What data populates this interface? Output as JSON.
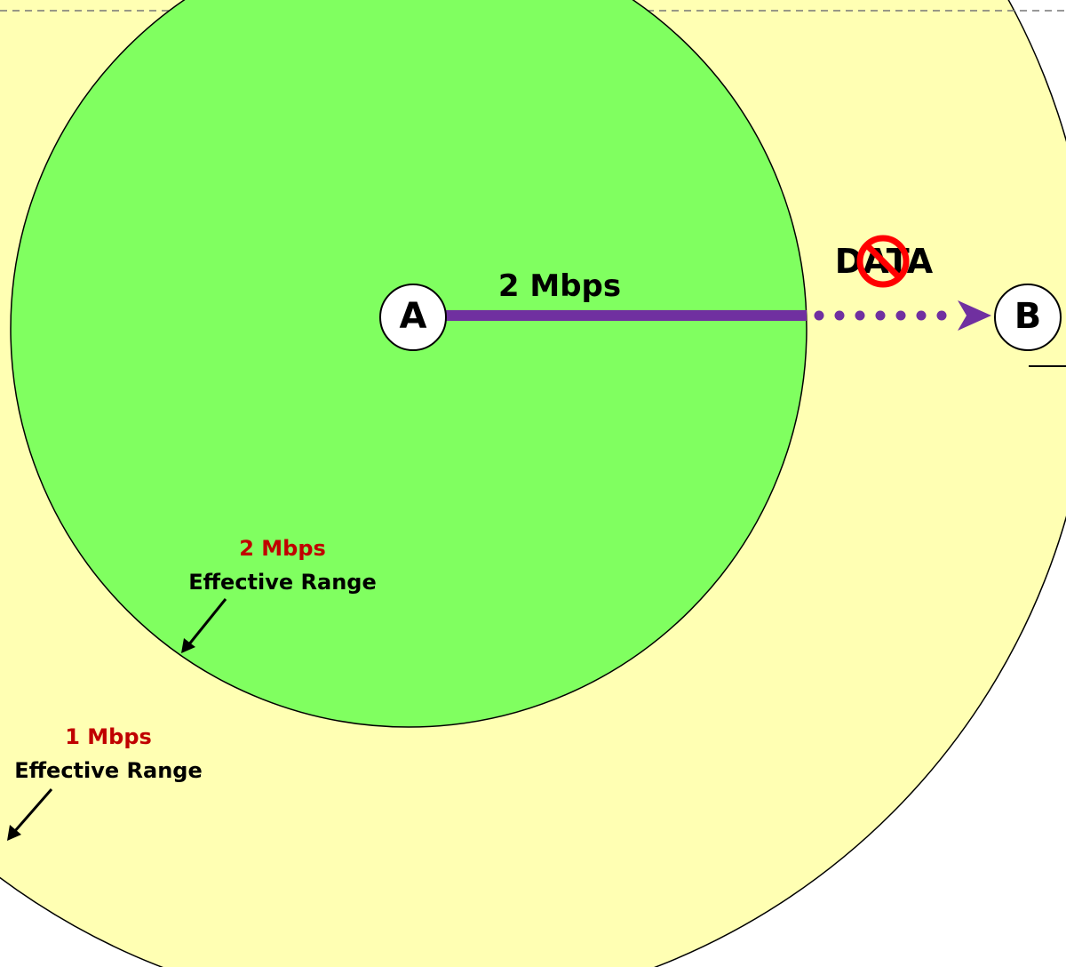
{
  "colors": {
    "outer_range_fill": "#FFFFB3",
    "inner_range_fill": "#80FF60",
    "link_color": "#7030A0",
    "rate_label_color": "#C00000",
    "prohibited_color": "#FF0000"
  },
  "nodes": {
    "a_label": "A",
    "b_label": "B"
  },
  "link": {
    "rate_label": "2 Mbps"
  },
  "packet": {
    "label": "DATA",
    "prohibited_icon": "no-sign-icon"
  },
  "ranges": {
    "inner": {
      "rate": "2 Mbps",
      "text": "Effective Range"
    },
    "outer": {
      "rate": "1 Mbps",
      "text": "Effective Range"
    }
  }
}
